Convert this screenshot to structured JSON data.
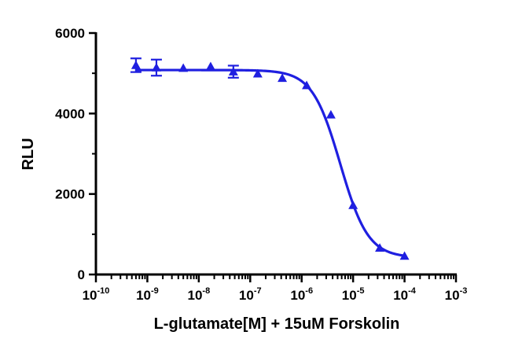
{
  "chart_data": {
    "type": "scatter",
    "title": "",
    "xlabel": "L-glutamate[M] + 15uM Forskolin",
    "ylabel": "RLU",
    "x_scale": "log",
    "xlim": [
      1e-10,
      0.001
    ],
    "ylim": [
      0,
      6000
    ],
    "x_ticks": [
      {
        "value": 1e-10,
        "base": "10",
        "exp": "-10"
      },
      {
        "value": 1e-09,
        "base": "10",
        "exp": "-9"
      },
      {
        "value": 1e-08,
        "base": "10",
        "exp": "-8"
      },
      {
        "value": 1e-07,
        "base": "10",
        "exp": "-7"
      },
      {
        "value": 1e-06,
        "base": "10",
        "exp": "-6"
      },
      {
        "value": 1e-05,
        "base": "10",
        "exp": "-5"
      },
      {
        "value": 0.0001,
        "base": "10",
        "exp": "-4"
      },
      {
        "value": 0.001,
        "base": "10",
        "exp": "-3"
      }
    ],
    "y_ticks": [
      {
        "value": 0,
        "label": "0"
      },
      {
        "value": 2000,
        "label": "2000"
      },
      {
        "value": 4000,
        "label": "4000"
      },
      {
        "value": 6000,
        "label": "6000"
      }
    ],
    "grid": false,
    "color": "#1f1fe0",
    "series": [
      {
        "marker": "triangle",
        "points": [
          {
            "x": 6e-10,
            "y": 5200,
            "err": 170
          },
          {
            "x": 1.5e-09,
            "y": 5140,
            "err": 200
          },
          {
            "x": 5e-09,
            "y": 5130,
            "err": 0
          },
          {
            "x": 1.7e-08,
            "y": 5170,
            "err": 0
          },
          {
            "x": 4.7e-08,
            "y": 5040,
            "err": 150
          },
          {
            "x": 1.4e-07,
            "y": 4990,
            "err": 0
          },
          {
            "x": 4.2e-07,
            "y": 4880,
            "err": 0
          },
          {
            "x": 1.25e-06,
            "y": 4700,
            "err": 0
          },
          {
            "x": 3.7e-06,
            "y": 3970,
            "err": 0
          },
          {
            "x": 1e-05,
            "y": 1720,
            "err": 0
          },
          {
            "x": 3.3e-05,
            "y": 660,
            "err": 0
          },
          {
            "x": 0.0001,
            "y": 460,
            "err": 0
          }
        ]
      }
    ],
    "fit": {
      "bottom": 420,
      "top": 5080,
      "log_ec50": -5.25,
      "hill": 1.6,
      "x_from": 6e-10,
      "x_to": 0.0001
    }
  }
}
